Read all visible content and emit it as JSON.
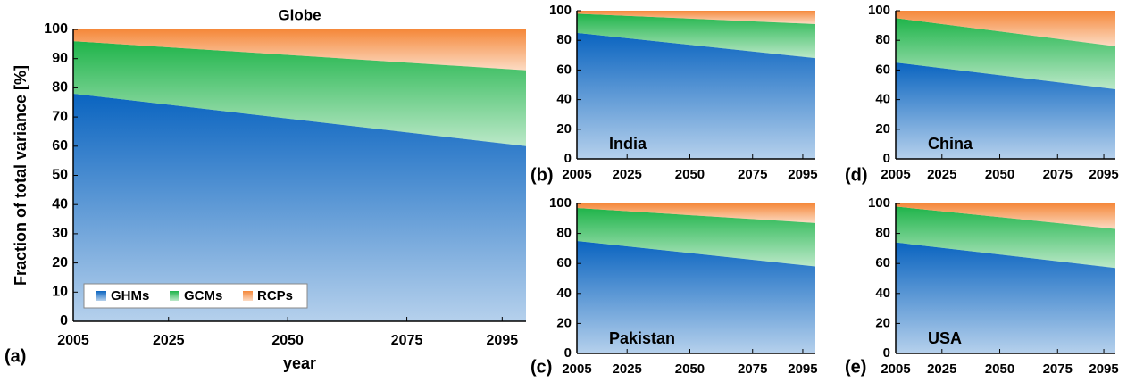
{
  "chart_data": [
    {
      "type": "area",
      "stacked": true,
      "title": "Globe",
      "title_position": "top",
      "panel_label": "(a)",
      "xlabel": "year",
      "ylabel": "Fraction of total variance [%]",
      "x": [
        2005,
        2100
      ],
      "xlim": [
        2005,
        2100
      ],
      "xticks": [
        2005,
        2025,
        2050,
        2075,
        2095
      ],
      "ylim": [
        0,
        100
      ],
      "yticks": [
        0,
        10,
        20,
        30,
        40,
        50,
        60,
        70,
        80,
        90,
        100
      ],
      "legend": "lower left",
      "series": [
        {
          "name": "GHMs",
          "color": "#0a64c0",
          "values": [
            78,
            60
          ]
        },
        {
          "name": "GCMs",
          "color": "#1fb44a",
          "values": [
            18,
            26
          ]
        },
        {
          "name": "RCPs",
          "color": "#f5883a",
          "values": [
            4,
            14
          ]
        }
      ]
    },
    {
      "type": "area",
      "stacked": true,
      "title": "India",
      "title_position": "inside lower left",
      "panel_label": "(b)",
      "x": [
        2005,
        2100
      ],
      "xlim": [
        2005,
        2100
      ],
      "xticks": [
        2005,
        2025,
        2050,
        2075,
        2095
      ],
      "ylim": [
        0,
        100
      ],
      "yticks": [
        0,
        20,
        40,
        60,
        80,
        100
      ],
      "series": [
        {
          "color": "#0a64c0",
          "values": [
            85,
            68
          ]
        },
        {
          "color": "#1fb44a",
          "values": [
            13,
            23
          ]
        },
        {
          "color": "#f5883a",
          "values": [
            2,
            9
          ]
        }
      ]
    },
    {
      "type": "area",
      "stacked": true,
      "title": "Pakistan",
      "title_position": "inside lower left",
      "panel_label": "(c)",
      "x": [
        2005,
        2100
      ],
      "xlim": [
        2005,
        2100
      ],
      "xticks": [
        2005,
        2025,
        2050,
        2075,
        2095
      ],
      "ylim": [
        0,
        100
      ],
      "yticks": [
        0,
        20,
        40,
        60,
        80,
        100
      ],
      "series": [
        {
          "color": "#0a64c0",
          "values": [
            75,
            58
          ]
        },
        {
          "color": "#1fb44a",
          "values": [
            22,
            29
          ]
        },
        {
          "color": "#f5883a",
          "values": [
            3,
            13
          ]
        }
      ]
    },
    {
      "type": "area",
      "stacked": true,
      "title": "China",
      "title_position": "inside lower left",
      "panel_label": "(d)",
      "x": [
        2005,
        2100
      ],
      "xlim": [
        2005,
        2100
      ],
      "xticks": [
        2005,
        2025,
        2050,
        2075,
        2095
      ],
      "ylim": [
        0,
        100
      ],
      "yticks": [
        0,
        20,
        40,
        60,
        80,
        100
      ],
      "series": [
        {
          "color": "#0a64c0",
          "values": [
            65,
            47
          ]
        },
        {
          "color": "#1fb44a",
          "values": [
            30,
            29
          ]
        },
        {
          "color": "#f5883a",
          "values": [
            5,
            24
          ]
        }
      ]
    },
    {
      "type": "area",
      "stacked": true,
      "title": "USA",
      "title_position": "inside lower left",
      "panel_label": "(e)",
      "x": [
        2005,
        2100
      ],
      "xlim": [
        2005,
        2100
      ],
      "xticks": [
        2005,
        2025,
        2050,
        2075,
        2095
      ],
      "ylim": [
        0,
        100
      ],
      "yticks": [
        0,
        20,
        40,
        60,
        80,
        100
      ],
      "series": [
        {
          "color": "#0a64c0",
          "values": [
            74,
            57
          ]
        },
        {
          "color": "#1fb44a",
          "values": [
            24,
            26
          ]
        },
        {
          "color": "#f5883a",
          "values": [
            2,
            17
          ]
        }
      ]
    }
  ]
}
